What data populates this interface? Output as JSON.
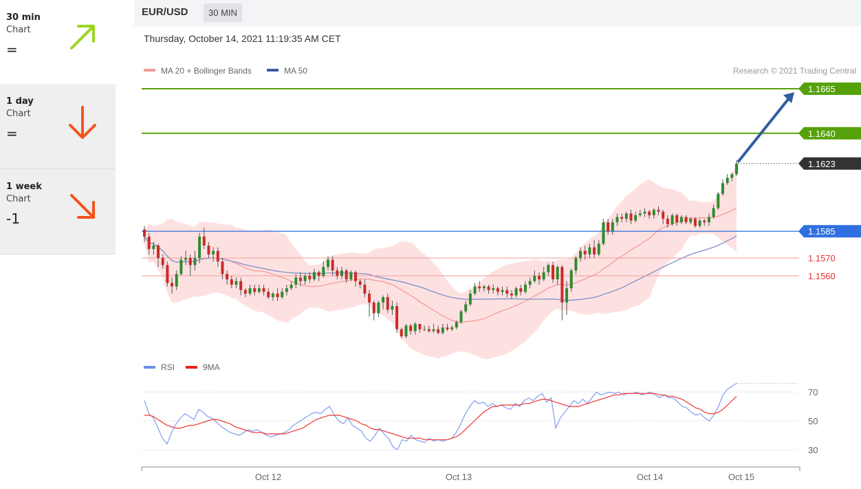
{
  "sidebar": {
    "items": [
      {
        "title": "30 min",
        "sub": "Chart",
        "value": "=",
        "arrow": "up",
        "color": "#9ad51f"
      },
      {
        "title": "1 day",
        "sub": "Chart",
        "value": "=",
        "arrow": "down",
        "color": "#f4521e"
      },
      {
        "title": "1 week",
        "sub": "Chart",
        "value": "-1",
        "arrow": "down-right",
        "color": "#f4521e"
      }
    ]
  },
  "header": {
    "pair": "EUR/USD",
    "timeframe": "30 MIN"
  },
  "datetime": "Thursday, October 14, 2021 11:19:35 AM CET",
  "chart_data": {
    "type": "candlestick",
    "legend": [
      {
        "name": "MA 20 + Bollinger Bands",
        "color": "#f59a9a"
      },
      {
        "name": "MA 50",
        "color": "#3b5ba5"
      }
    ],
    "credit": "Research © 2021 Trading Central",
    "levels": [
      {
        "value": "1.1665",
        "kind": "target",
        "color": "#56a10a"
      },
      {
        "value": "1.1640",
        "kind": "target",
        "color": "#56a10a"
      },
      {
        "value": "1.1623",
        "kind": "last",
        "color": "#333333"
      },
      {
        "value": "1.1585",
        "kind": "pivot",
        "color": "#2f6fe0"
      },
      {
        "value": "1.1570",
        "kind": "support",
        "color": "#e8332f"
      },
      {
        "value": "1.1560",
        "kind": "support",
        "color": "#e8332f"
      }
    ],
    "x_ticks": [
      "Oct 12",
      "Oct 13",
      "Oct 14",
      "Oct 15"
    ],
    "candles": [
      [
        1.1586,
        1.1582,
        1.1588,
        1.1579
      ],
      [
        1.1582,
        1.1575,
        1.1584,
        1.1572
      ],
      [
        1.1575,
        1.1577,
        1.1579,
        1.1572
      ],
      [
        1.1577,
        1.157,
        1.1578,
        1.1565
      ],
      [
        1.157,
        1.1566,
        1.1572,
        1.1564
      ],
      [
        1.1566,
        1.1556,
        1.1568,
        1.1554
      ],
      [
        1.1556,
        1.1554,
        1.1559,
        1.155
      ],
      [
        1.1554,
        1.1561,
        1.1563,
        1.1552
      ],
      [
        1.1561,
        1.1569,
        1.1571,
        1.156
      ],
      [
        1.1569,
        1.157,
        1.1574,
        1.1566
      ],
      [
        1.157,
        1.1566,
        1.1572,
        1.156
      ],
      [
        1.1566,
        1.157,
        1.1574,
        1.1563
      ],
      [
        1.157,
        1.1582,
        1.1584,
        1.1567
      ],
      [
        1.1582,
        1.1577,
        1.1587,
        1.1575
      ],
      [
        1.1577,
        1.1572,
        1.1579,
        1.157
      ],
      [
        1.1572,
        1.1574,
        1.1576,
        1.1568
      ],
      [
        1.1574,
        1.1568,
        1.1576,
        1.1565
      ],
      [
        1.1568,
        1.1561,
        1.157,
        1.1558
      ],
      [
        1.1561,
        1.1558,
        1.1563,
        1.1555
      ],
      [
        1.1558,
        1.1555,
        1.156,
        1.1553
      ],
      [
        1.1555,
        1.1557,
        1.1559,
        1.1553
      ],
      [
        1.1557,
        1.1552,
        1.1559,
        1.1549
      ],
      [
        1.1552,
        1.155,
        1.1553,
        1.1548
      ],
      [
        1.155,
        1.1553,
        1.1555,
        1.1549
      ],
      [
        1.1553,
        1.1551,
        1.1555,
        1.1549
      ],
      [
        1.1551,
        1.1553,
        1.1555,
        1.155
      ],
      [
        1.1553,
        1.1551,
        1.1555,
        1.1549
      ],
      [
        1.1551,
        1.1548,
        1.1553,
        1.1547
      ],
      [
        1.1548,
        1.155,
        1.1551,
        1.1546
      ],
      [
        1.155,
        1.1548,
        1.1553,
        1.1546
      ],
      [
        1.1548,
        1.1551,
        1.1553,
        1.1547
      ],
      [
        1.1551,
        1.1553,
        1.1555,
        1.1549
      ],
      [
        1.1553,
        1.1555,
        1.1557,
        1.1552
      ],
      [
        1.1555,
        1.1559,
        1.1561,
        1.1553
      ],
      [
        1.1559,
        1.1557,
        1.1562,
        1.1554
      ],
      [
        1.1557,
        1.156,
        1.1561,
        1.1555
      ],
      [
        1.156,
        1.1558,
        1.1562,
        1.1556
      ],
      [
        1.1558,
        1.1562,
        1.1564,
        1.1557
      ],
      [
        1.1562,
        1.156,
        1.1563,
        1.1557
      ],
      [
        1.156,
        1.1565,
        1.1568,
        1.1559
      ],
      [
        1.1565,
        1.1569,
        1.1571,
        1.1563
      ],
      [
        1.1569,
        1.1563,
        1.1571,
        1.156
      ],
      [
        1.1563,
        1.156,
        1.1565,
        1.1558
      ],
      [
        1.156,
        1.1563,
        1.1565,
        1.1558
      ],
      [
        1.1563,
        1.1558,
        1.1564,
        1.1556
      ],
      [
        1.1558,
        1.1562,
        1.1563,
        1.1557
      ],
      [
        1.1562,
        1.1557,
        1.1563,
        1.1554
      ],
      [
        1.1557,
        1.1555,
        1.1558,
        1.1553
      ],
      [
        1.1555,
        1.155,
        1.1558,
        1.1548
      ],
      [
        1.155,
        1.1545,
        1.1552,
        1.1537
      ],
      [
        1.1545,
        1.1539,
        1.1546,
        1.1535
      ],
      [
        1.1539,
        1.1545,
        1.1546,
        1.1537
      ],
      [
        1.1545,
        1.1548,
        1.1549,
        1.1541
      ],
      [
        1.1548,
        1.1541,
        1.155,
        1.1539
      ],
      [
        1.1541,
        1.1543,
        1.1546,
        1.1538
      ],
      [
        1.1543,
        1.153,
        1.1545,
        1.1528
      ],
      [
        1.153,
        1.1526,
        1.1531,
        1.1525
      ],
      [
        1.1526,
        1.1532,
        1.1533,
        1.1525
      ],
      [
        1.1532,
        1.1529,
        1.1533,
        1.1527
      ],
      [
        1.1529,
        1.1533,
        1.1534,
        1.1527
      ],
      [
        1.1533,
        1.153,
        1.1533,
        1.1528
      ],
      [
        1.153,
        1.153,
        1.1532,
        1.1529
      ],
      [
        1.153,
        1.1529,
        1.1532,
        1.1528
      ],
      [
        1.1529,
        1.153,
        1.1533,
        1.1528
      ],
      [
        1.153,
        1.1528,
        1.1532,
        1.1527
      ],
      [
        1.1528,
        1.1531,
        1.1533,
        1.1527
      ],
      [
        1.1531,
        1.153,
        1.1533,
        1.1529
      ],
      [
        1.153,
        1.1531,
        1.1532,
        1.1529
      ],
      [
        1.1531,
        1.1534,
        1.1535,
        1.153
      ],
      [
        1.1534,
        1.154,
        1.1541,
        1.1533
      ],
      [
        1.154,
        1.1544,
        1.1546,
        1.1539
      ],
      [
        1.1544,
        1.155,
        1.1552,
        1.1543
      ],
      [
        1.155,
        1.1554,
        1.1556,
        1.1549
      ],
      [
        1.1554,
        1.1553,
        1.1557,
        1.1551
      ],
      [
        1.1553,
        1.1554,
        1.1555,
        1.1551
      ],
      [
        1.1554,
        1.1552,
        1.1555,
        1.155
      ],
      [
        1.1552,
        1.1553,
        1.1555,
        1.155
      ],
      [
        1.1553,
        1.1551,
        1.1554,
        1.1549
      ],
      [
        1.1551,
        1.1552,
        1.1554,
        1.1549
      ],
      [
        1.1552,
        1.155,
        1.1554,
        1.1548
      ],
      [
        1.155,
        1.1549,
        1.1552,
        1.1547
      ],
      [
        1.1549,
        1.1553,
        1.1554,
        1.1548
      ],
      [
        1.1553,
        1.1551,
        1.1555,
        1.1549
      ],
      [
        1.1551,
        1.1555,
        1.1557,
        1.155
      ],
      [
        1.1555,
        1.1557,
        1.1559,
        1.1553
      ],
      [
        1.1557,
        1.156,
        1.1563,
        1.1556
      ],
      [
        1.156,
        1.1558,
        1.1562,
        1.1555
      ],
      [
        1.1558,
        1.1562,
        1.1565,
        1.1557
      ],
      [
        1.1562,
        1.1566,
        1.1567,
        1.156
      ],
      [
        1.1566,
        1.1558,
        1.1568,
        1.1556
      ],
      [
        1.1558,
        1.1565,
        1.1566,
        1.1555
      ],
      [
        1.1565,
        1.1545,
        1.1566,
        1.1535
      ],
      [
        1.1545,
        1.1553,
        1.1557,
        1.1538
      ],
      [
        1.1553,
        1.1563,
        1.1564,
        1.1551
      ],
      [
        1.1563,
        1.157,
        1.1571,
        1.1561
      ],
      [
        1.157,
        1.1574,
        1.1576,
        1.1568
      ],
      [
        1.1574,
        1.1572,
        1.1577,
        1.1569
      ],
      [
        1.1572,
        1.1576,
        1.1578,
        1.157
      ],
      [
        1.1576,
        1.1572,
        1.158,
        1.157
      ],
      [
        1.1572,
        1.1578,
        1.158,
        1.1571
      ],
      [
        1.1578,
        1.159,
        1.1592,
        1.1577
      ],
      [
        1.159,
        1.1585,
        1.1592,
        1.1583
      ],
      [
        1.1585,
        1.159,
        1.1592,
        1.1583
      ],
      [
        1.159,
        1.1593,
        1.1595,
        1.1588
      ],
      [
        1.1593,
        1.1592,
        1.1595,
        1.159
      ],
      [
        1.1592,
        1.1595,
        1.1596,
        1.159
      ],
      [
        1.1595,
        1.1591,
        1.1597,
        1.1589
      ],
      [
        1.1591,
        1.1594,
        1.1596,
        1.159
      ],
      [
        1.1594,
        1.1595,
        1.1597,
        1.1593
      ],
      [
        1.1595,
        1.1596,
        1.1598,
        1.1593
      ],
      [
        1.1596,
        1.1594,
        1.1597,
        1.1592
      ],
      [
        1.1594,
        1.1597,
        1.1598,
        1.1592
      ],
      [
        1.1597,
        1.1596,
        1.1599,
        1.1594
      ],
      [
        1.1596,
        1.1592,
        1.1597,
        1.1589
      ],
      [
        1.1592,
        1.1589,
        1.1594,
        1.1587
      ],
      [
        1.1589,
        1.1594,
        1.1595,
        1.1588
      ],
      [
        1.1594,
        1.159,
        1.1595,
        1.1588
      ],
      [
        1.159,
        1.1593,
        1.1594,
        1.1589
      ],
      [
        1.1593,
        1.159,
        1.1594,
        1.1589
      ],
      [
        1.159,
        1.1592,
        1.1593,
        1.1589
      ],
      [
        1.1592,
        1.1588,
        1.1593,
        1.1587
      ],
      [
        1.1588,
        1.1591,
        1.1592,
        1.1587
      ],
      [
        1.1591,
        1.159,
        1.1592,
        1.1588
      ],
      [
        1.159,
        1.1593,
        1.1595,
        1.1588
      ],
      [
        1.1593,
        1.1598,
        1.16,
        1.1592
      ],
      [
        1.1598,
        1.1606,
        1.1607,
        1.1597
      ],
      [
        1.1606,
        1.1612,
        1.1614,
        1.1605
      ],
      [
        1.1612,
        1.1615,
        1.1617,
        1.1611
      ],
      [
        1.1615,
        1.1617,
        1.1618,
        1.1613
      ],
      [
        1.1617,
        1.1623,
        1.1625,
        1.1616
      ]
    ],
    "rsi": {
      "legend": [
        {
          "name": "RSI",
          "color": "#6f8fe6"
        },
        {
          "name": "9MA",
          "color": "#ee2222"
        }
      ],
      "y_ticks": [
        "70",
        "50",
        "30"
      ],
      "ylim": [
        20,
        80
      ],
      "rsi": [
        64,
        55,
        52,
        45,
        38,
        34,
        42,
        48,
        52,
        55,
        53,
        51,
        58,
        56,
        53,
        52,
        49,
        46,
        44,
        42,
        41,
        40,
        42,
        44,
        43,
        44,
        42,
        40,
        39,
        40,
        41,
        42,
        44,
        47,
        49,
        51,
        53,
        55,
        56,
        55,
        58,
        60,
        54,
        50,
        48,
        52,
        47,
        45,
        43,
        38,
        36,
        40,
        45,
        41,
        38,
        32,
        30,
        37,
        36,
        40,
        37,
        36,
        35,
        38,
        36,
        37,
        36,
        37,
        38,
        42,
        48,
        55,
        60,
        64,
        62,
        63,
        60,
        62,
        60,
        61,
        59,
        58,
        62,
        60,
        64,
        66,
        64,
        67,
        69,
        63,
        66,
        45,
        52,
        56,
        60,
        64,
        62,
        65,
        62,
        66,
        70,
        68,
        69,
        70,
        69,
        70,
        68,
        69,
        69,
        70,
        68,
        69,
        70,
        68,
        66,
        68,
        66,
        66,
        63,
        60,
        59,
        56,
        54,
        55,
        52,
        50,
        54,
        60,
        68,
        72,
        74,
        76
      ],
      "ma": [
        54,
        54,
        53,
        51,
        49,
        47,
        46,
        45,
        45,
        46,
        47,
        47,
        48,
        49,
        50,
        51,
        51,
        50,
        49,
        48,
        46,
        45,
        44,
        43,
        42,
        42,
        42,
        41,
        41,
        41,
        41,
        41,
        42,
        43,
        44,
        45,
        47,
        49,
        51,
        52,
        53,
        54,
        54,
        54,
        53,
        52,
        51,
        50,
        48,
        47,
        45,
        44,
        44,
        43,
        42,
        41,
        40,
        39,
        38,
        38,
        38,
        38,
        37,
        37,
        37,
        37,
        37,
        37,
        38,
        39,
        41,
        44,
        47,
        50,
        53,
        56,
        58,
        60,
        60,
        61,
        61,
        61,
        61,
        61,
        62,
        62,
        63,
        64,
        65,
        65,
        64,
        63,
        62,
        61,
        60,
        60,
        60,
        61,
        62,
        63,
        64,
        65,
        66,
        67,
        68,
        68,
        69,
        69,
        69,
        69,
        69,
        69,
        69,
        69,
        68,
        68,
        67,
        67,
        66,
        65,
        63,
        61,
        59,
        58,
        56,
        55,
        55,
        56,
        58,
        61,
        64,
        67
      ]
    }
  }
}
